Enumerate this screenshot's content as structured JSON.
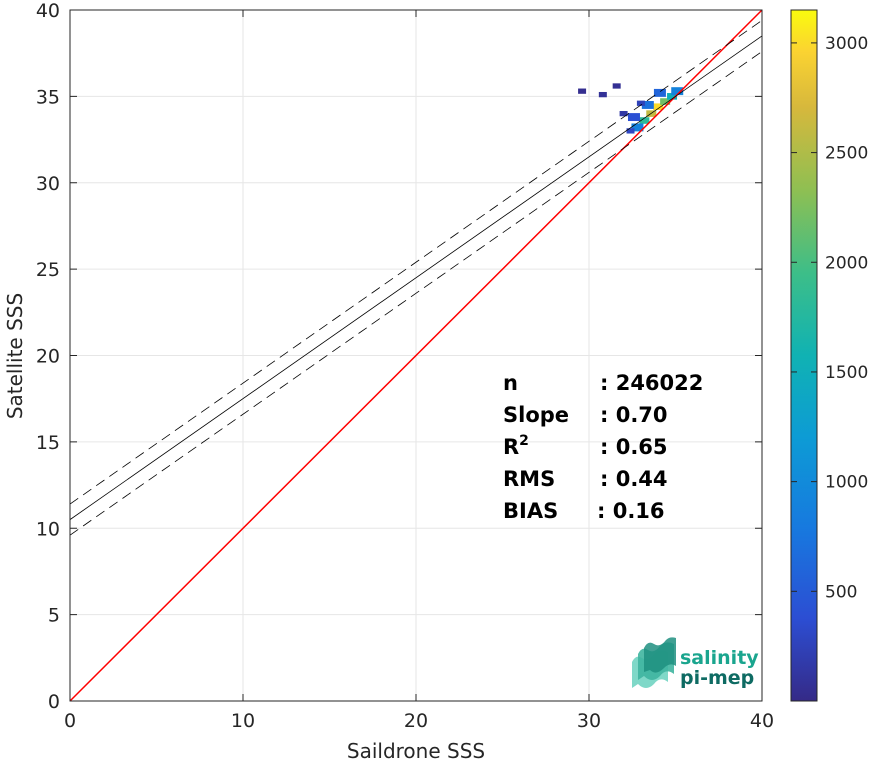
{
  "chart_data": {
    "type": "heatmap",
    "xlabel": "Saildrone SSS",
    "ylabel": "Satellite SSS",
    "xlim": [
      0,
      40
    ],
    "ylim": [
      0,
      40
    ],
    "xticks": [
      0,
      10,
      20,
      30,
      40
    ],
    "yticks": [
      0,
      5,
      10,
      15,
      20,
      25,
      30,
      35,
      40
    ],
    "grid": true,
    "colorbar": {
      "min": 0,
      "max": 3150,
      "ticks": [
        500,
        1000,
        1500,
        2000,
        2500,
        3000
      ],
      "colormap": "parula"
    },
    "density_cells": [
      {
        "x": 33.6,
        "y": 34.0,
        "count": 2600
      },
      {
        "x": 34.0,
        "y": 34.4,
        "count": 3000
      },
      {
        "x": 34.4,
        "y": 34.7,
        "count": 2200
      },
      {
        "x": 33.2,
        "y": 33.6,
        "count": 1800
      },
      {
        "x": 34.8,
        "y": 35.0,
        "count": 1500
      },
      {
        "x": 35.1,
        "y": 35.3,
        "count": 900
      },
      {
        "x": 32.8,
        "y": 33.2,
        "count": 900
      },
      {
        "x": 33.4,
        "y": 34.5,
        "count": 700
      },
      {
        "x": 34.1,
        "y": 35.2,
        "count": 600
      },
      {
        "x": 32.6,
        "y": 33.8,
        "count": 400
      },
      {
        "x": 33.0,
        "y": 34.6,
        "count": 250
      },
      {
        "x": 32.4,
        "y": 33.0,
        "count": 300
      },
      {
        "x": 30.8,
        "y": 35.1,
        "count": 80
      },
      {
        "x": 29.6,
        "y": 35.3,
        "count": 40
      },
      {
        "x": 31.6,
        "y": 35.6,
        "count": 60
      },
      {
        "x": 32.0,
        "y": 34.0,
        "count": 150
      }
    ],
    "lines": [
      {
        "name": "1:1",
        "points": [
          [
            0,
            0
          ],
          [
            40,
            40
          ]
        ],
        "color": "#ff0000",
        "style": "solid"
      },
      {
        "name": "fit",
        "points": [
          [
            0,
            10.5
          ],
          [
            40,
            38.5
          ]
        ],
        "color": "#000000",
        "style": "solid"
      },
      {
        "name": "fit-upper",
        "points": [
          [
            0,
            11.4
          ],
          [
            40,
            39.4
          ]
        ],
        "color": "#000000",
        "style": "dashed"
      },
      {
        "name": "fit-lower",
        "points": [
          [
            0,
            9.6
          ],
          [
            40,
            37.6
          ]
        ],
        "color": "#000000",
        "style": "dashed"
      }
    ],
    "stats": [
      {
        "label": "n",
        "value": ": 246022"
      },
      {
        "label": "Slope",
        "value": ": 0.70"
      },
      {
        "label": "R",
        "sup": "2",
        "value": ": 0.65"
      },
      {
        "label": "RMS",
        "value": ": 0.44"
      },
      {
        "label": "BIAS",
        "value": ": 0.16"
      }
    ]
  },
  "logo": {
    "line1": "salinity",
    "line2": "pi-mep",
    "color1": "#1aa58e",
    "color2": "#0e6b63"
  }
}
